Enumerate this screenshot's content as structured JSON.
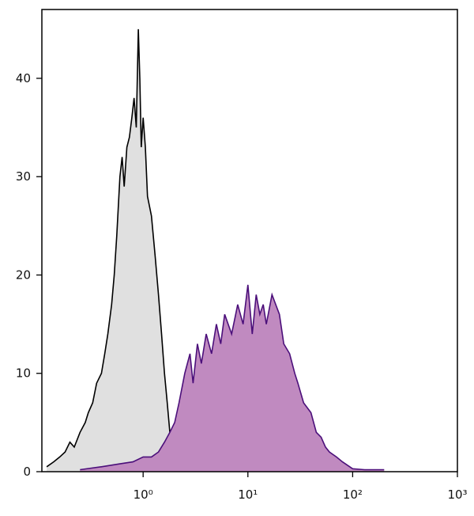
{
  "chart_data": {
    "type": "histogram-overlay",
    "xlog": true,
    "xlim": [
      0.108,
      1000
    ],
    "ylim": [
      0,
      47
    ],
    "xticks": [
      {
        "value": 1,
        "label": "10⁰"
      },
      {
        "value": 10,
        "label": "10¹"
      },
      {
        "value": 100,
        "label": "10²"
      },
      {
        "value": 1000,
        "label": "10³"
      }
    ],
    "yticks": [
      0,
      10,
      20,
      30,
      40
    ],
    "series": [
      {
        "color": "#000000",
        "fill": "#e0e0e0",
        "x": [
          0.12,
          0.14,
          0.16,
          0.18,
          0.2,
          0.22,
          0.25,
          0.28,
          0.3,
          0.33,
          0.36,
          0.4,
          0.43,
          0.46,
          0.5,
          0.53,
          0.56,
          0.6,
          0.63,
          0.66,
          0.7,
          0.74,
          0.78,
          0.82,
          0.86,
          0.9,
          0.93,
          0.96,
          1.0,
          1.05,
          1.1,
          1.2,
          1.3,
          1.4,
          1.5,
          1.6,
          1.7,
          1.8,
          2.0,
          2.2,
          2.5
        ],
        "values": [
          0.5,
          1,
          1.5,
          2,
          3,
          2.5,
          4,
          5,
          6,
          7,
          9,
          10,
          12,
          14,
          17,
          20,
          24,
          30,
          32,
          29,
          33,
          34,
          36,
          38,
          35,
          45,
          40,
          33,
          36,
          33,
          28,
          26,
          22,
          18,
          14,
          10,
          7,
          4,
          2,
          1,
          0.3
        ]
      },
      {
        "color": "#4b0f7a",
        "fill": "#c08ac0",
        "x": [
          0.25,
          0.4,
          0.6,
          0.8,
          1.0,
          1.2,
          1.4,
          1.6,
          1.8,
          2.0,
          2.2,
          2.5,
          2.8,
          3.0,
          3.3,
          3.6,
          4.0,
          4.5,
          5.0,
          5.5,
          6.0,
          7.0,
          8.0,
          9.0,
          10,
          11,
          12,
          13,
          14,
          15,
          17,
          20,
          22,
          25,
          28,
          30,
          34,
          40,
          45,
          50,
          55,
          60,
          70,
          80,
          100,
          130,
          200
        ],
        "values": [
          0.2,
          0.5,
          0.8,
          1,
          1.5,
          1.5,
          2,
          3,
          4,
          5,
          7,
          10,
          12,
          9,
          13,
          11,
          14,
          12,
          15,
          13,
          16,
          14,
          17,
          15,
          19,
          14,
          18,
          16,
          17,
          15,
          18,
          16,
          13,
          12,
          10,
          9,
          7,
          6,
          4,
          3.5,
          2.5,
          2,
          1.5,
          1,
          0.3,
          0.2,
          0.2
        ]
      }
    ]
  }
}
